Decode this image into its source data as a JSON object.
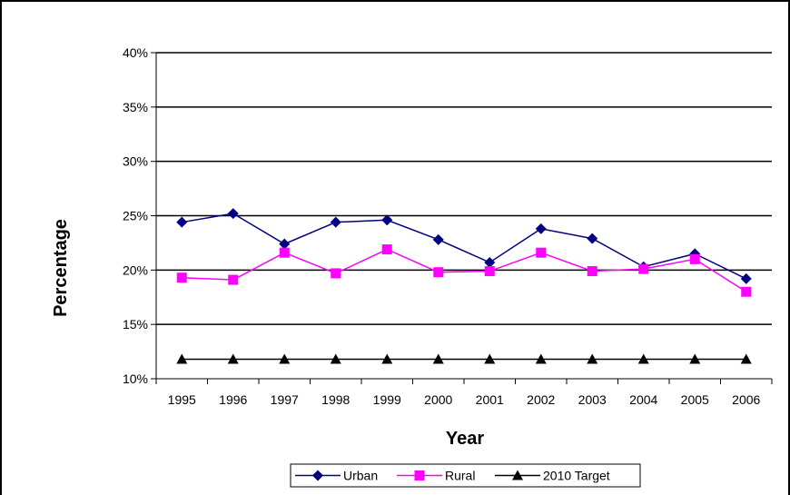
{
  "chart_data": {
    "type": "line",
    "xlabel": "Year",
    "ylabel": "Percentage",
    "categories": [
      "1995",
      "1996",
      "1997",
      "1998",
      "1999",
      "2000",
      "2001",
      "2002",
      "2003",
      "2004",
      "2005",
      "2006"
    ],
    "ylim": [
      10,
      40
    ],
    "yticks": [
      10,
      15,
      20,
      25,
      30,
      35,
      40
    ],
    "ytick_suffix": "%",
    "grid": "horizontal",
    "legend_position": "bottom",
    "series": [
      {
        "name": "Urban",
        "marker": "diamond",
        "color": "#000080",
        "values": [
          24.4,
          25.2,
          22.4,
          24.4,
          24.6,
          22.8,
          20.7,
          23.8,
          22.9,
          20.3,
          21.5,
          19.2
        ]
      },
      {
        "name": "Rural",
        "marker": "square",
        "color": "#FF00FF",
        "values": [
          19.3,
          19.1,
          21.6,
          19.7,
          21.9,
          19.8,
          19.9,
          21.6,
          19.9,
          20.1,
          21.0,
          18.0
        ]
      },
      {
        "name": "2010 Target",
        "marker": "triangle",
        "color": "#000000",
        "values": [
          11.8,
          11.8,
          11.8,
          11.8,
          11.8,
          11.8,
          11.8,
          11.8,
          11.8,
          11.8,
          11.8,
          11.8
        ]
      }
    ]
  }
}
